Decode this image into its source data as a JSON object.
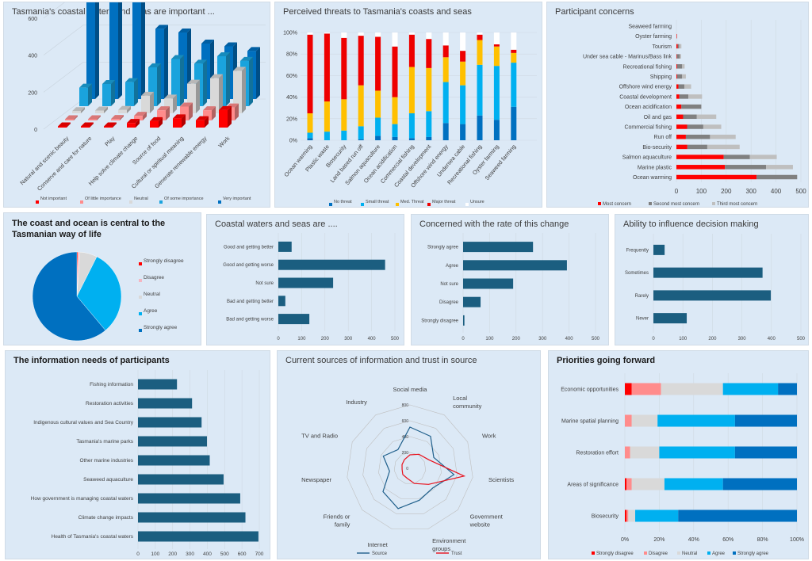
{
  "colors": {
    "panel_bg": "#dce9f6",
    "bar_teal": "#1b5e80",
    "red": "#ff0000",
    "pink": "#ff8c8c",
    "light_gray": "#d9d9d9",
    "cyan": "#00b0f0",
    "blue": "#0070c0",
    "dark_gray": "#808080",
    "mid_gray": "#bfbfbf",
    "source_line": "#1f5f8b",
    "trust_line": "#e8101c"
  },
  "chart_data": [
    {
      "id": "importance",
      "type": "bar",
      "subtype": "3d-clustered",
      "title": "Tasmania's coastal waters and seas are important ...",
      "categories": [
        "Natural and scenic beauty",
        "Conserve and care for nature",
        "Play",
        "Help solve climate change",
        "Source of food",
        "Cultural or spiritual meaning",
        "Generate renewable energy",
        "Work"
      ],
      "series": [
        {
          "name": "Not important",
          "color": "#ff0000",
          "values": [
            3,
            3,
            4,
            25,
            35,
            50,
            40,
            95
          ]
        },
        {
          "name": "Of little importance",
          "color": "#ff8c8c",
          "values": [
            5,
            6,
            8,
            25,
            55,
            75,
            55,
            70
          ]
        },
        {
          "name": "Neutral",
          "color": "#d9d9d9",
          "values": [
            12,
            15,
            18,
            95,
            80,
            160,
            190,
            230
          ]
        },
        {
          "name": "Of some importance",
          "color": "#1aa3dd",
          "values": [
            100,
            120,
            130,
            210,
            255,
            230,
            270,
            245
          ]
        },
        {
          "name": "Very important",
          "color": "#0070c0",
          "values": [
            670,
            650,
            640,
            380,
            360,
            300,
            285,
            260
          ]
        }
      ],
      "yticks": [
        0,
        200,
        400,
        600
      ],
      "ylim": [
        0,
        700
      ],
      "legend": "bottom"
    },
    {
      "id": "threats",
      "type": "bar",
      "subtype": "stacked-100",
      "title": "Perceived threats to Tasmania's coasts and seas",
      "categories": [
        "Ocean warming",
        "Plastic waste",
        "Biosecurity",
        "Land based run off",
        "Salmon aquaculture",
        "Ocean acidification",
        "Commercial fishing",
        "Coastal development",
        "Offshore wind energy",
        "Undersea cable",
        "Recreational fishing",
        "Oyster farming",
        "Seaweed farming"
      ],
      "series": [
        {
          "name": "No threat",
          "color": "#0070c0",
          "values": [
            2,
            0,
            0,
            1,
            4,
            3,
            2,
            3,
            16,
            15,
            23,
            19,
            31
          ]
        },
        {
          "name": "Small threat",
          "color": "#00b0f0",
          "values": [
            5,
            8,
            9,
            12,
            17,
            12,
            23,
            24,
            38,
            36,
            47,
            50,
            41
          ]
        },
        {
          "name": "Med. Threat",
          "color": "#ffc000",
          "values": [
            18,
            28,
            29,
            38,
            25,
            25,
            43,
            40,
            23,
            22,
            23,
            18,
            9
          ]
        },
        {
          "name": "Major threat",
          "color": "#ee0000",
          "values": [
            73,
            63,
            57,
            46,
            50,
            47,
            30,
            27,
            11,
            10,
            5,
            2,
            3
          ]
        },
        {
          "name": "Unsure",
          "color": "#ffffff",
          "values": [
            2,
            1,
            5,
            3,
            4,
            13,
            2,
            6,
            12,
            17,
            2,
            11,
            16
          ]
        }
      ],
      "yticks": [
        "0%",
        "20%",
        "40%",
        "60%",
        "80%",
        "100%"
      ],
      "ylim": [
        0,
        100
      ],
      "legend": "bottom"
    },
    {
      "id": "concerns",
      "type": "bar",
      "subtype": "stacked-horizontal",
      "title": "Participant concerns",
      "categories": [
        "Seaweed farming",
        "Oyster farming",
        "Tourism",
        "Under sea cable - Marinus/Bass link",
        "Recreational fishing",
        "Shipping",
        "Offshore wind energy",
        "Coastal development",
        "Ocean acidification",
        "Oil and gas",
        "Commercial fishing",
        "Run off",
        "Bio-security",
        "Salmon aquaculture",
        "Marine plastic",
        "Ocean warming"
      ],
      "series": [
        {
          "name": "Most concern",
          "color": "#ff0000",
          "values": [
            0,
            2,
            5,
            2,
            3,
            3,
            8,
            12,
            20,
            27,
            43,
            38,
            44,
            190,
            195,
            322
          ]
        },
        {
          "name": "Second most concern",
          "color": "#808080",
          "values": [
            0,
            0,
            6,
            12,
            20,
            20,
            24,
            36,
            80,
            55,
            65,
            97,
            80,
            105,
            165,
            163
          ]
        },
        {
          "name": "Third most concern",
          "color": "#bfbfbf",
          "values": [
            0,
            1,
            9,
            5,
            10,
            15,
            27,
            55,
            0,
            78,
            72,
            103,
            130,
            108,
            108,
            0
          ]
        }
      ],
      "xticks": [
        0,
        100,
        200,
        300,
        400,
        500
      ],
      "xlim": [
        0,
        500
      ],
      "legend": "bottom"
    },
    {
      "id": "central",
      "type": "pie",
      "title": "The coast and ocean is central to the Tasmanian way of life",
      "labels": [
        "Strongly disagree",
        "Disagree",
        "Neutral",
        "Agree",
        "Strongly agree"
      ],
      "colors": [
        "#ff0000",
        "#f4b6c2",
        "#d9d9d9",
        "#00b0f0",
        "#0070c0"
      ],
      "values": [
        0.4,
        0.7,
        6.3,
        31.5,
        61.1
      ],
      "legend": "right"
    },
    {
      "id": "coastal_state",
      "type": "bar",
      "subtype": "horizontal",
      "title": "Coastal waters and seas are ....",
      "categories": [
        "Good and getting better",
        "Good and getting worse",
        "Not sure",
        "Bad and getting better",
        "Bad and getting worse"
      ],
      "values": [
        57,
        458,
        235,
        30,
        133
      ],
      "xticks": [
        0,
        100,
        200,
        300,
        400,
        500
      ],
      "xlim": [
        0,
        500
      ]
    },
    {
      "id": "rate_change",
      "type": "bar",
      "subtype": "horizontal",
      "title": "Concerned with the rate of this change",
      "categories": [
        "Strongly agree",
        "Agree",
        "Not sure",
        "Disagree",
        "Strongly disagree"
      ],
      "values": [
        264,
        392,
        189,
        66,
        5
      ],
      "xticks": [
        0,
        100,
        200,
        300,
        400,
        500
      ],
      "xlim": [
        0,
        500
      ]
    },
    {
      "id": "influence",
      "type": "bar",
      "subtype": "horizontal",
      "title": "Ability to influence decision making",
      "categories": [
        "Frequently",
        "Sometimes",
        "Rarely",
        "Never"
      ],
      "values": [
        38,
        370,
        398,
        113
      ],
      "xticks": [
        0,
        100,
        200,
        300,
        400,
        500
      ],
      "xlim": [
        0,
        500
      ]
    },
    {
      "id": "info_needs",
      "type": "bar",
      "subtype": "horizontal",
      "title": "The information needs of participants",
      "categories": [
        "Fishing information",
        "Restoration activities",
        "Indigenous cultural values and Sea Country",
        "Tasmania's marine parks",
        "Other marine industries",
        "Seaweed aquaculture",
        "How government is managing coastal waters",
        "Climate change impacts",
        "Health of Tasmania's coastal waters"
      ],
      "values": [
        225,
        312,
        367,
        398,
        414,
        494,
        590,
        620,
        695
      ],
      "xticks": [
        0,
        100,
        200,
        300,
        400,
        500,
        600,
        700
      ],
      "xlim": [
        0,
        700
      ]
    },
    {
      "id": "sources",
      "type": "radar",
      "title": "Current sources of information and trust in source",
      "axes": [
        "Social media",
        "Local community",
        "Work",
        "Scientists",
        "Government website",
        "Environment groups",
        "Internet",
        "Friends or family",
        "Newspaper",
        "TV and Radio",
        "Industry"
      ],
      "series": [
        {
          "name": "Source",
          "color": "#1f5f8b",
          "values": [
            520,
            480,
            330,
            560,
            380,
            420,
            530,
            450,
            260,
            370,
            280
          ]
        },
        {
          "name": "Trust",
          "color": "#e8101c",
          "values": [
            170,
            210,
            260,
            690,
            310,
            200,
            130,
            120,
            100,
            110,
            130
          ]
        }
      ],
      "rticks": [
        0,
        200,
        400,
        600,
        800
      ],
      "rlim": [
        0,
        800
      ],
      "legend": "bottom"
    },
    {
      "id": "priorities",
      "type": "bar",
      "subtype": "stacked-100-horizontal",
      "title": "Priorities going forward",
      "categories": [
        "Economic opportunities",
        "Marine spatial planning",
        "Restoration effort",
        "Areas of significance",
        "Biosecurity"
      ],
      "series": [
        {
          "name": "Strongly disagree",
          "color": "#ff0000",
          "values": [
            4,
            0,
            0,
            1,
            1
          ]
        },
        {
          "name": "Disagree",
          "color": "#ff8c8c",
          "values": [
            17,
            4,
            3,
            3,
            1
          ]
        },
        {
          "name": "Neutral",
          "color": "#d9d9d9",
          "values": [
            36,
            15,
            17,
            19,
            4
          ]
        },
        {
          "name": "Agree",
          "color": "#00b0f0",
          "values": [
            32,
            45,
            44,
            34,
            25
          ]
        },
        {
          "name": "Strongly agree",
          "color": "#0070c0",
          "values": [
            11,
            36,
            36,
            43,
            69
          ]
        }
      ],
      "xticks": [
        "0%",
        "20%",
        "40%",
        "60%",
        "80%",
        "100%"
      ],
      "xlim": [
        0,
        100
      ],
      "legend": "bottom"
    }
  ]
}
